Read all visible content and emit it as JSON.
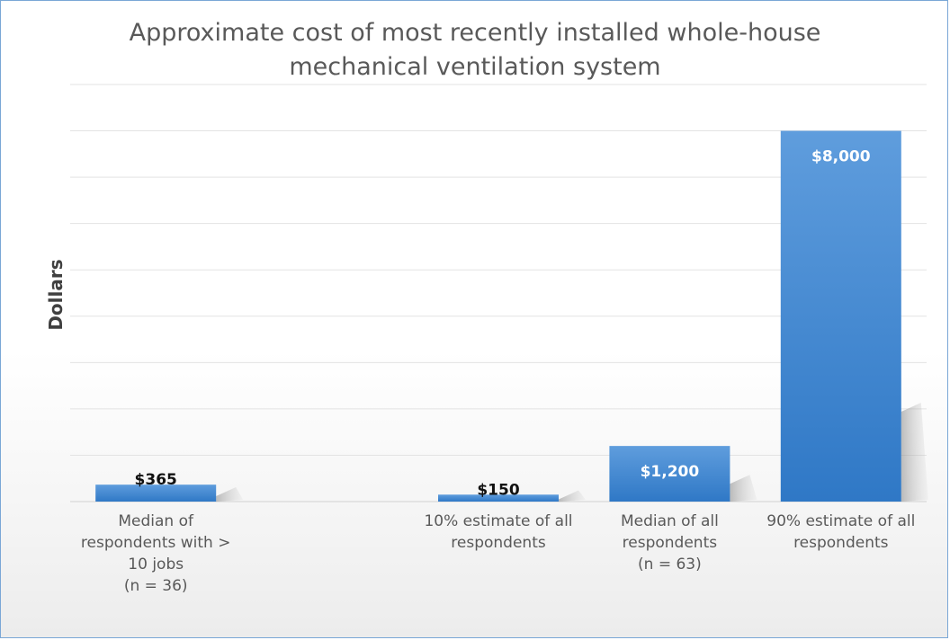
{
  "chart_data": {
    "type": "bar",
    "title": "Approximate cost of most recently installed whole-house mechanical ventilation system",
    "title_lines": [
      "Approximate cost of most recently installed whole-house",
      "mechanical ventilation system"
    ],
    "ylabel": "Dollars",
    "xlabel": "",
    "ylim": [
      0,
      9000
    ],
    "grid": true,
    "legend": "none",
    "categories": [
      "Median of respondents with > 10 jobs (n = 36)",
      "",
      "10% estimate of all respondents",
      "Median of all respondents (n = 63)",
      "90% estimate of all respondents"
    ],
    "category_lines": [
      [
        "Median of",
        "respondents with >",
        "10 jobs",
        "(n = 36)"
      ],
      [],
      [
        "10% estimate of all",
        "respondents"
      ],
      [
        "Median of all",
        "respondents",
        "(n = 63)"
      ],
      [
        "90% estimate of all",
        "respondents"
      ]
    ],
    "values": [
      365,
      null,
      150,
      1200,
      8000
    ],
    "data_labels": [
      "$365",
      "",
      "$150",
      "$1,200",
      "$8,000"
    ],
    "bar_color": "#3e86d2"
  }
}
